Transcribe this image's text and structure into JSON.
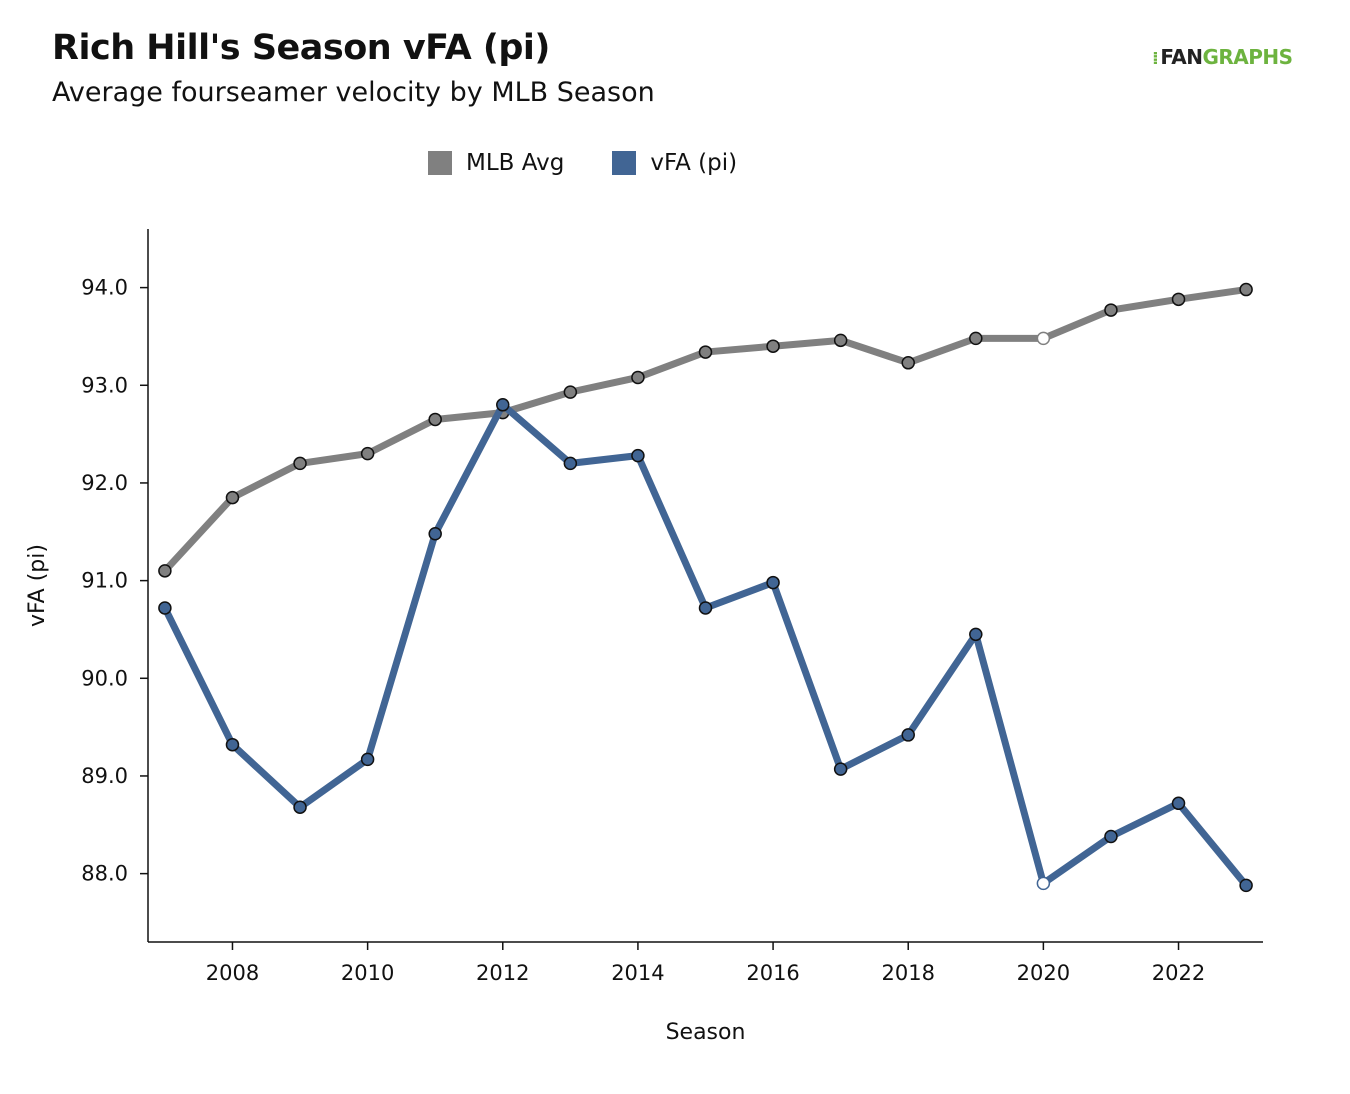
{
  "header": {
    "title": "Rich Hill's Season vFA (pi)",
    "subtitle": "Average fourseamer velocity by MLB Season",
    "logo_text_dark": "FAN",
    "logo_text_green": "GRAPHS"
  },
  "chart_data": {
    "type": "line",
    "xlabel": "Season",
    "ylabel": "vFA (pi)",
    "xlim": [
      2006.75,
      2023.25
    ],
    "ylim": [
      87.3,
      94.6
    ],
    "x_ticks": [
      2008,
      2010,
      2012,
      2014,
      2016,
      2018,
      2020,
      2022
    ],
    "y_ticks": [
      88.0,
      89.0,
      90.0,
      91.0,
      92.0,
      93.0,
      94.0
    ],
    "legend_position": "top-center",
    "grid": false,
    "x": [
      2007,
      2008,
      2009,
      2010,
      2011,
      2012,
      2013,
      2014,
      2015,
      2016,
      2017,
      2018,
      2019,
      2020,
      2021,
      2022,
      2023
    ],
    "series": [
      {
        "name": "MLB Avg",
        "color": "#808080",
        "values": [
          91.1,
          91.85,
          92.2,
          92.3,
          92.65,
          92.72,
          92.93,
          93.08,
          93.34,
          93.4,
          93.46,
          93.23,
          93.48,
          93.48,
          93.77,
          93.88,
          93.98
        ],
        "hollow_x": [
          2020
        ]
      },
      {
        "name": "vFA (pi)",
        "color": "#416594",
        "values": [
          90.72,
          89.32,
          88.68,
          89.17,
          91.48,
          92.8,
          92.2,
          92.28,
          90.72,
          90.98,
          89.07,
          89.42,
          90.45,
          87.9,
          88.38,
          88.72,
          87.88
        ],
        "hollow_x": [
          2020
        ]
      }
    ]
  }
}
